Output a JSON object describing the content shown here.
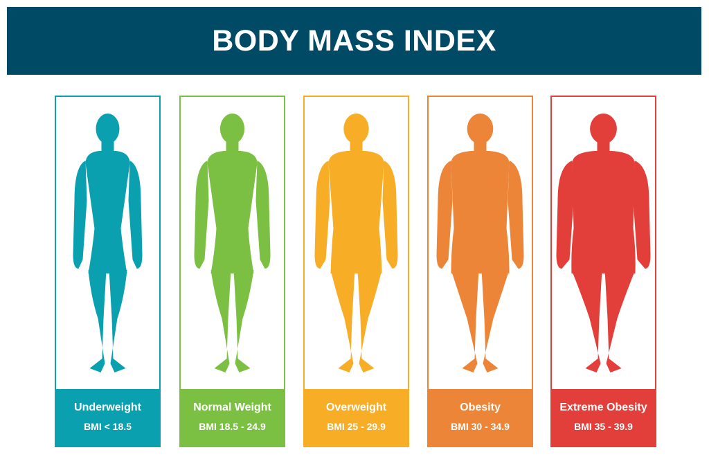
{
  "title": "BODY MASS INDEX",
  "colors": {
    "banner": "#004a66",
    "underweight": "#0aa0b0",
    "normal": "#7cc043",
    "overweight": "#f7ad26",
    "obesity": "#ec8537",
    "extreme": "#e33f3a"
  },
  "categories": [
    {
      "name": "Underweight",
      "range": "BMI < 18.5",
      "color": "#0aa0b0",
      "icon": "slim-body-silhouette-icon"
    },
    {
      "name": "Normal Weight",
      "range": "BMI 18.5 - 24.9",
      "color": "#7cc043",
      "icon": "normal-body-silhouette-icon"
    },
    {
      "name": "Overweight",
      "range": "BMI 25 - 29.9",
      "color": "#f7ad26",
      "icon": "overweight-body-silhouette-icon"
    },
    {
      "name": "Obesity",
      "range": "BMI 30 - 34.9",
      "color": "#ec8537",
      "icon": "obese-body-silhouette-icon"
    },
    {
      "name": "Extreme Obesity",
      "range": "BMI 35 - 39.9",
      "color": "#e33f3a",
      "icon": "extremely-obese-body-silhouette-icon"
    }
  ]
}
